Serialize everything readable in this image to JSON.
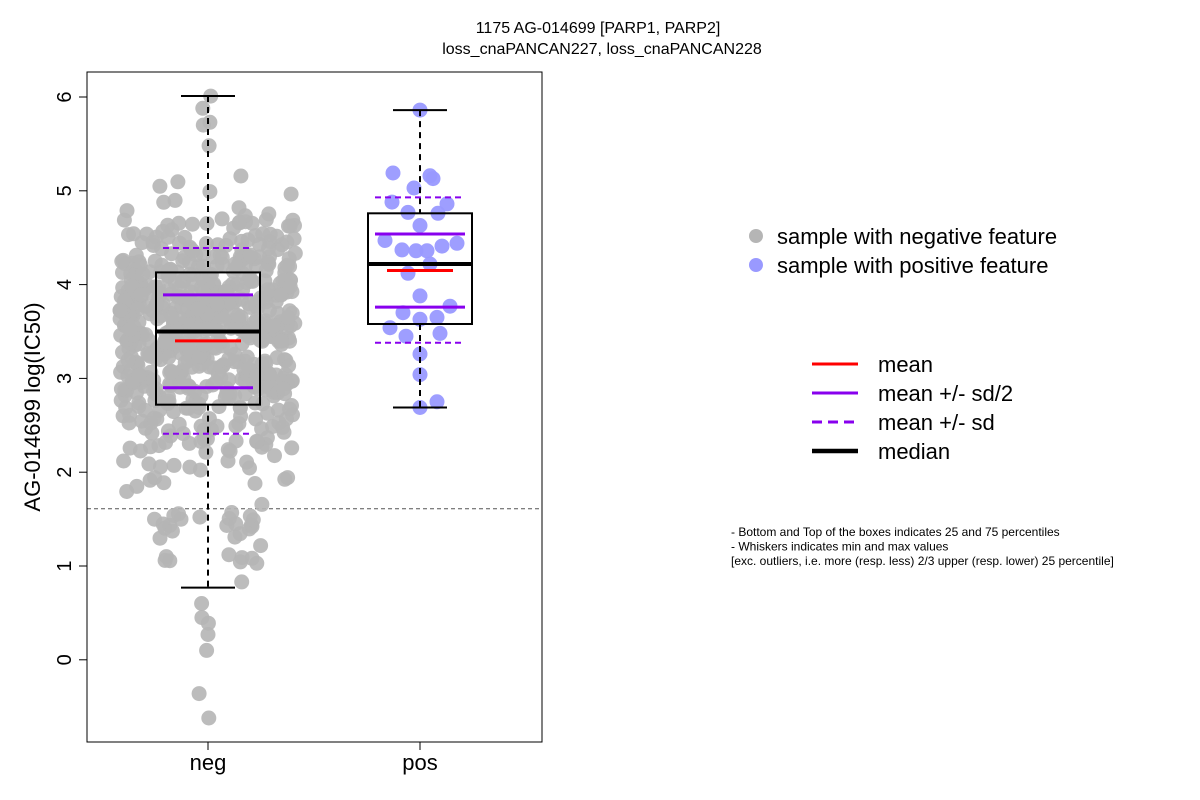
{
  "chart_data": {
    "type": "box",
    "title_line1": "1175 AG-014699 [PARP1, PARP2]",
    "title_line2": "loss_cnaPANCAN227, loss_cnaPANCAN228",
    "ylabel": "AG-014699 log(IC50)",
    "ylim": [
      -0.9,
      6.28
    ],
    "yticks": [
      0,
      1,
      2,
      3,
      4,
      5,
      6
    ],
    "categories": [
      "neg",
      "pos"
    ],
    "reference_line_y": 1.61,
    "groups": [
      {
        "name": "neg",
        "color": "#b5b5b5",
        "whisker_low": 0.77,
        "q1": 2.72,
        "median": 3.5,
        "q3": 4.13,
        "whisker_high": 6.01,
        "mean": 3.4,
        "mean_minus_half_sd": 2.9,
        "mean_plus_half_sd": 3.89,
        "mean_minus_sd": 2.41,
        "mean_plus_sd": 4.39,
        "points_summary": "≈700 jittered samples, range -0.62 to 6.01",
        "notable_points": [
          6.01,
          5.88,
          5.73,
          5.7,
          5.48,
          1.12,
          0.83,
          0.6,
          0.45,
          0.39,
          0.27,
          0.1,
          -0.36,
          -0.62
        ]
      },
      {
        "name": "pos",
        "color": "#9999ff",
        "whisker_low": 2.69,
        "q1": 3.58,
        "median": 4.22,
        "q3": 4.76,
        "whisker_high": 5.86,
        "mean": 4.15,
        "mean_minus_half_sd": 3.76,
        "mean_plus_half_sd": 4.54,
        "mean_minus_sd": 3.38,
        "mean_plus_sd": 4.93,
        "points": [
          5.86,
          5.19,
          5.16,
          5.13,
          5.03,
          4.88,
          4.86,
          4.77,
          4.76,
          4.63,
          4.47,
          4.44,
          4.41,
          4.37,
          4.36,
          4.36,
          4.22,
          4.12,
          3.88,
          3.77,
          3.7,
          3.65,
          3.63,
          3.54,
          3.48,
          3.45,
          3.26,
          3.04,
          2.75,
          2.69
        ]
      }
    ]
  },
  "legend_points": [
    {
      "label": "sample with negative feature",
      "color": "#b5b5b5"
    },
    {
      "label": "sample with positive feature",
      "color": "#9999ff"
    }
  ],
  "legend_lines": [
    {
      "label": "mean",
      "color": "#ff0000",
      "style": "solid"
    },
    {
      "label": "mean +/- sd/2",
      "color": "#8800ee",
      "style": "solid"
    },
    {
      "label": "mean +/- sd",
      "color": "#8800ee",
      "style": "dashed"
    },
    {
      "label": "median",
      "color": "#000000",
      "style": "solid-thick"
    }
  ],
  "notes": [
    "- Bottom and Top of the boxes indicates 25 and 75 percentiles",
    "- Whiskers indicates min and max values",
    "[exc. outliers, i.e. more (resp. less) 2/3 upper (resp. lower) 25 percentile]"
  ]
}
